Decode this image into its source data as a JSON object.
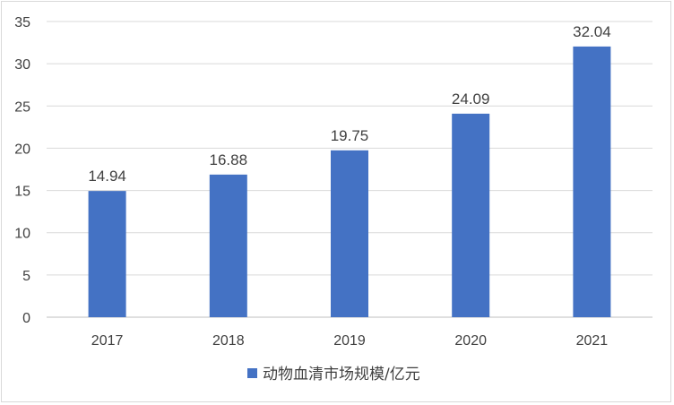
{
  "chart_data": {
    "type": "bar",
    "categories": [
      "2017",
      "2018",
      "2019",
      "2020",
      "2021"
    ],
    "series": [
      {
        "name": "动物血清市场规模/亿元",
        "values": [
          14.94,
          16.88,
          19.75,
          24.09,
          32.04
        ],
        "color": "#4472c4"
      }
    ],
    "data_labels": [
      "14.94",
      "16.88",
      "19.75",
      "24.09",
      "32.04"
    ],
    "ylim": [
      0,
      35
    ],
    "yticks": [
      "0",
      "5",
      "10",
      "15",
      "20",
      "25",
      "30",
      "35"
    ],
    "title": "",
    "xlabel": "",
    "ylabel": "",
    "grid": true,
    "legend_position": "bottom"
  }
}
